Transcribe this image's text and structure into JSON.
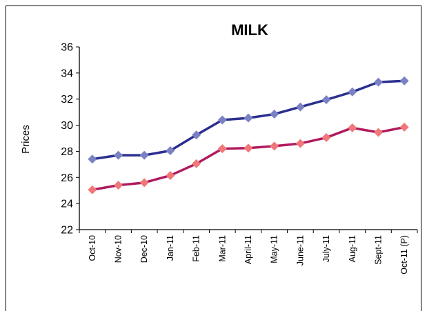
{
  "chart_data": {
    "type": "line",
    "title": "MILK",
    "xlabel": "",
    "ylabel": "Prices",
    "ylim": [
      22,
      36
    ],
    "yticks": [
      "22",
      "24",
      "26",
      "28",
      "30",
      "32",
      "34",
      "36"
    ],
    "grid": false,
    "legend": "none",
    "categories": [
      "Oct-10",
      "Nov-10",
      "Dec-10",
      "Jan-11",
      "Feb-11",
      "Mar-11",
      "April-11",
      "May-11",
      "June-11",
      "July-11",
      "Aug-11",
      "Sept-11",
      "Oct-11 (P)"
    ],
    "series": [
      {
        "line_color": "#2b2f8f",
        "marker_color": "#7b82c4",
        "values": [
          27.4,
          27.7,
          27.7,
          28.05,
          29.25,
          30.4,
          30.55,
          30.85,
          31.4,
          31.95,
          32.55,
          33.3,
          33.4
        ]
      },
      {
        "line_color": "#b01a5e",
        "marker_color": "#f0787a",
        "values": [
          25.05,
          25.4,
          25.6,
          26.15,
          27.05,
          28.2,
          28.25,
          28.4,
          28.6,
          29.05,
          29.8,
          29.45,
          29.85
        ]
      }
    ]
  }
}
